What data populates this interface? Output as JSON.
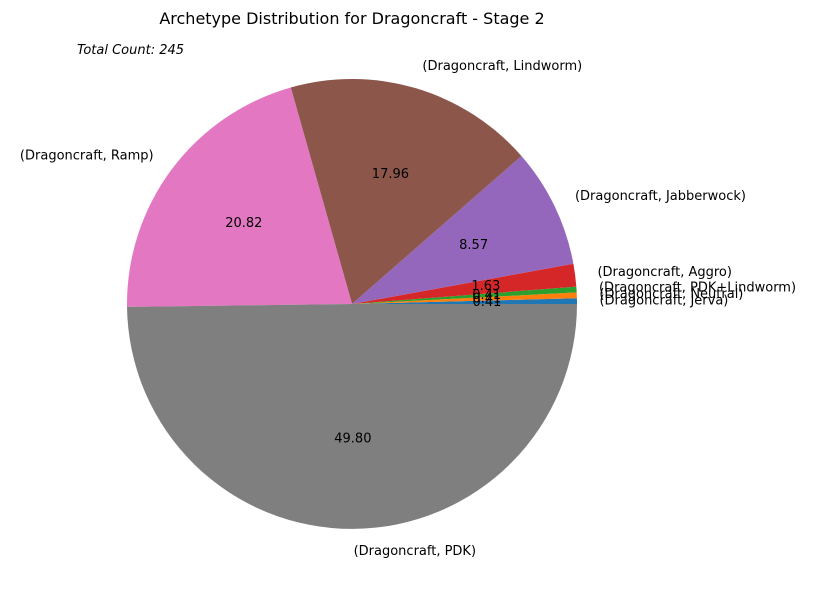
{
  "chart_data": {
    "type": "pie",
    "title": "Archetype Distribution for Dragoncraft - Stage 2",
    "annotation": "Total Count: 245",
    "start_angle_deg": 0,
    "direction": "counterclockwise",
    "slices": [
      {
        "label": "(Dragoncraft, Jerva)",
        "value": 0.41,
        "value_label": "0.41",
        "color": "#1f77b4"
      },
      {
        "label": "(Dragoncraft, Neutral)",
        "value": 0.41,
        "value_label": "0.41",
        "color": "#ff7f0e"
      },
      {
        "label": "(Dragoncraft, PDK+Lindworm)",
        "value": 0.41,
        "value_label": "0.41",
        "color": "#2ca02c"
      },
      {
        "label": "(Dragoncraft, Aggro)",
        "value": 1.63,
        "value_label": "1.63",
        "color": "#d62728"
      },
      {
        "label": "(Dragoncraft, Jabberwock)",
        "value": 8.57,
        "value_label": "8.57",
        "color": "#9467bd"
      },
      {
        "label": "(Dragoncraft, Lindworm)",
        "value": 17.96,
        "value_label": "17.96",
        "color": "#8c564b"
      },
      {
        "label": "(Dragoncraft, Ramp)",
        "value": 20.82,
        "value_label": "20.82",
        "color": "#e377c2"
      },
      {
        "label": "(Dragoncraft, PDK)",
        "value": 49.8,
        "value_label": "49.80",
        "color": "#7f7f7f"
      }
    ]
  }
}
